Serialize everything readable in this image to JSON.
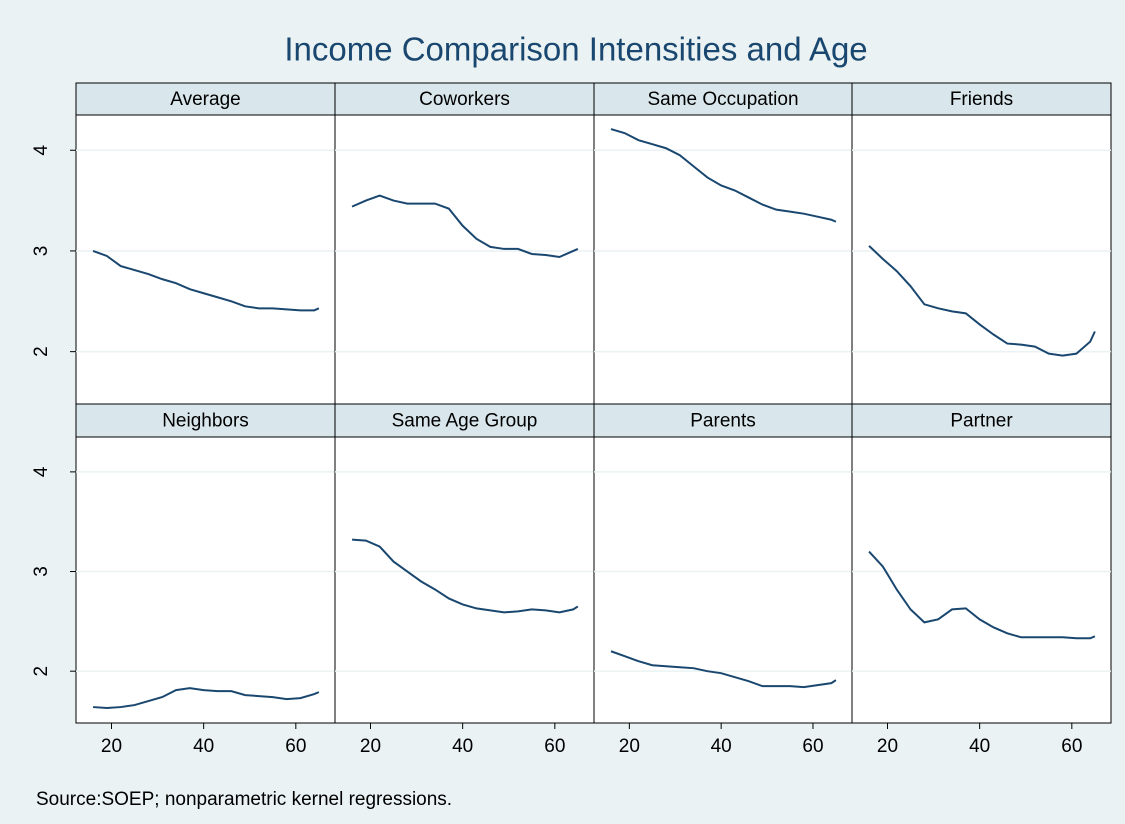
{
  "title": "Income Comparison Intensities and Age",
  "note": "Source:SOEP; nonparametric kernel regressions.",
  "axes": {
    "xlim": [
      12.3,
      68.5
    ],
    "ylim": [
      1.48,
      4.35
    ],
    "xticks": [
      20,
      40,
      60
    ],
    "yticks": [
      2,
      3,
      4
    ],
    "grid": true
  },
  "chart_data": [
    {
      "type": "line",
      "title": "Average",
      "color": "#1a476f",
      "x": [
        16,
        19,
        22,
        25,
        28,
        31,
        34,
        37,
        40,
        43,
        46,
        49,
        52,
        55,
        58,
        61,
        64,
        65
      ],
      "values": [
        3.0,
        2.95,
        2.85,
        2.81,
        2.77,
        2.72,
        2.68,
        2.62,
        2.58,
        2.54,
        2.5,
        2.45,
        2.43,
        2.43,
        2.42,
        2.41,
        2.41,
        2.43
      ]
    },
    {
      "type": "line",
      "title": "Coworkers",
      "color": "#1a476f",
      "x": [
        16,
        19,
        22,
        25,
        28,
        31,
        34,
        37,
        40,
        43,
        46,
        49,
        52,
        55,
        58,
        61,
        64,
        65
      ],
      "values": [
        3.44,
        3.5,
        3.55,
        3.5,
        3.47,
        3.47,
        3.47,
        3.42,
        3.25,
        3.12,
        3.04,
        3.02,
        3.02,
        2.97,
        2.96,
        2.94,
        3.0,
        3.02
      ]
    },
    {
      "type": "line",
      "title": "Same Occupation",
      "color": "#1a476f",
      "x": [
        16,
        19,
        22,
        25,
        28,
        31,
        34,
        37,
        40,
        43,
        46,
        49,
        52,
        55,
        58,
        61,
        64,
        65
      ],
      "values": [
        4.21,
        4.17,
        4.1,
        4.06,
        4.02,
        3.95,
        3.84,
        3.73,
        3.65,
        3.6,
        3.53,
        3.46,
        3.41,
        3.39,
        3.37,
        3.34,
        3.31,
        3.29
      ]
    },
    {
      "type": "line",
      "title": "Friends",
      "color": "#1a476f",
      "x": [
        16,
        19,
        22,
        25,
        28,
        31,
        34,
        37,
        40,
        43,
        46,
        49,
        52,
        55,
        58,
        61,
        64,
        65
      ],
      "values": [
        3.05,
        2.92,
        2.8,
        2.65,
        2.47,
        2.43,
        2.4,
        2.38,
        2.27,
        2.17,
        2.08,
        2.07,
        2.05,
        1.98,
        1.96,
        1.98,
        2.1,
        2.2
      ]
    },
    {
      "type": "line",
      "title": "Neighbors",
      "color": "#1a476f",
      "x": [
        16,
        19,
        22,
        25,
        28,
        31,
        34,
        37,
        40,
        43,
        46,
        49,
        52,
        55,
        58,
        61,
        64,
        65
      ],
      "values": [
        1.64,
        1.63,
        1.64,
        1.66,
        1.7,
        1.74,
        1.81,
        1.83,
        1.81,
        1.8,
        1.8,
        1.76,
        1.75,
        1.74,
        1.72,
        1.73,
        1.77,
        1.79
      ]
    },
    {
      "type": "line",
      "title": "Same Age Group",
      "color": "#1a476f",
      "x": [
        16,
        19,
        22,
        25,
        28,
        31,
        34,
        37,
        40,
        43,
        46,
        49,
        52,
        55,
        58,
        61,
        64,
        65
      ],
      "values": [
        3.32,
        3.31,
        3.25,
        3.1,
        3.0,
        2.9,
        2.82,
        2.73,
        2.67,
        2.63,
        2.61,
        2.59,
        2.6,
        2.62,
        2.61,
        2.59,
        2.62,
        2.65
      ]
    },
    {
      "type": "line",
      "title": "Parents",
      "color": "#1a476f",
      "x": [
        16,
        19,
        22,
        25,
        28,
        31,
        34,
        37,
        40,
        43,
        46,
        49,
        52,
        55,
        58,
        61,
        64,
        65
      ],
      "values": [
        2.2,
        2.15,
        2.1,
        2.06,
        2.05,
        2.04,
        2.03,
        2.0,
        1.98,
        1.94,
        1.9,
        1.85,
        1.85,
        1.85,
        1.84,
        1.86,
        1.88,
        1.91
      ]
    },
    {
      "type": "line",
      "title": "Partner",
      "color": "#1a476f",
      "x": [
        16,
        19,
        22,
        25,
        28,
        31,
        34,
        37,
        40,
        43,
        46,
        49,
        52,
        55,
        58,
        61,
        64,
        65
      ],
      "values": [
        3.2,
        3.05,
        2.82,
        2.62,
        2.49,
        2.52,
        2.62,
        2.63,
        2.52,
        2.44,
        2.38,
        2.34,
        2.34,
        2.34,
        2.34,
        2.33,
        2.33,
        2.35
      ]
    }
  ]
}
